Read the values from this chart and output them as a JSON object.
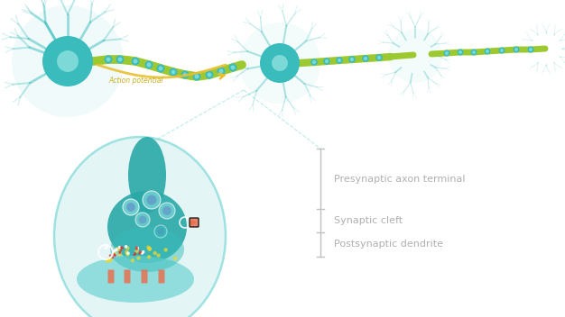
{
  "bg_color": "#ffffff",
  "teal_main": "#3abcbc",
  "teal_light": "#7dd8d8",
  "teal_dark": "#2aa8a8",
  "teal_pale": "#c8ecec",
  "teal_circle_bg": "#d8f2f2",
  "green_axon": "#9dc930",
  "yellow_arrow": "#e8c030",
  "orange_detail": "#e87050",
  "purple_vesicle": "#6080c8",
  "text_color": "#b0b0b0",
  "label_presynaptic": "Presynaptic axon terminal",
  "label_synaptic": "Synaptic cleft",
  "label_postsynaptic": "Postsynaptic dendrite",
  "label_action": "Action potential",
  "figsize": [
    6.26,
    3.52
  ],
  "dpi": 100
}
